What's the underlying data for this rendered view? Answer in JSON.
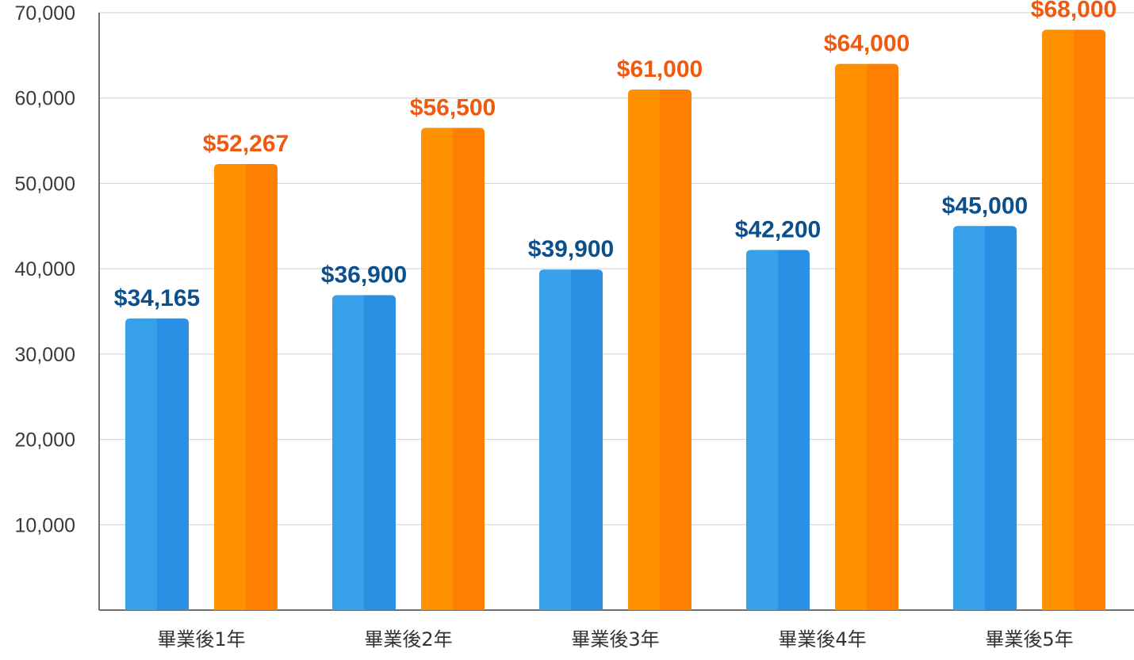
{
  "chart_data": {
    "type": "bar",
    "categories": [
      "畢業後1年",
      "畢業後2年",
      "畢業後3年",
      "畢業後4年",
      "畢業後5年"
    ],
    "series": [
      {
        "values": [
          34165,
          36900,
          39900,
          42200,
          45000
        ],
        "labels": [
          "$34,165",
          "$36,900",
          "$39,900",
          "$42,200",
          "$45,000"
        ],
        "color_light": "#37a0ea",
        "color_dark": "#2b8fe3",
        "label_color": "#0b4f8c"
      },
      {
        "values": [
          52267,
          56500,
          61000,
          64000,
          68000
        ],
        "labels": [
          "$52,267",
          "$56,500",
          "$61,000",
          "$64,000",
          "$68,000"
        ],
        "color_light": "#ff9100",
        "color_dark": "#ff7f00",
        "label_color": "#f05a0f"
      }
    ],
    "title": "",
    "xlabel": "",
    "ylabel": "",
    "ylim": [
      0,
      70000
    ],
    "yticks": [
      10000,
      20000,
      30000,
      40000,
      50000,
      60000,
      70000
    ],
    "ytick_labels": [
      "10,000",
      "20,000",
      "30,000",
      "40,000",
      "50,000",
      "60,000",
      "70,000"
    ],
    "grid": true,
    "legend": "none",
    "colors": {
      "grid": "#cfcfcf",
      "axis": "#6f6f6f"
    }
  }
}
